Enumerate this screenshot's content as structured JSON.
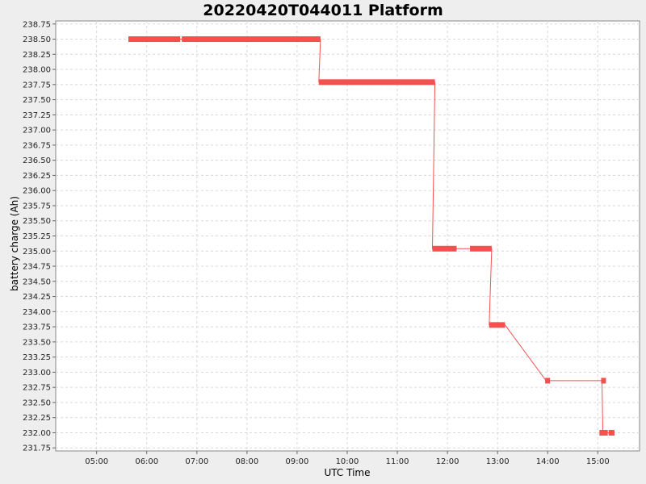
{
  "chart_data": {
    "type": "line",
    "title": "20220420T044011 Platform",
    "xlabel": "UTC Time",
    "ylabel": "battery charge (Ah)",
    "xlim": [
      "04:11",
      "15:50"
    ],
    "ylim": [
      231.7,
      238.8
    ],
    "x_ticks": [
      "05:00",
      "06:00",
      "07:00",
      "08:00",
      "09:00",
      "10:00",
      "11:00",
      "12:00",
      "13:00",
      "14:00",
      "15:00"
    ],
    "y_ticks": [
      "231.75",
      "232.00",
      "232.25",
      "232.50",
      "232.75",
      "233.00",
      "233.25",
      "233.50",
      "233.75",
      "234.00",
      "234.25",
      "234.50",
      "234.75",
      "235.00",
      "235.25",
      "235.50",
      "235.75",
      "236.00",
      "236.25",
      "236.50",
      "236.75",
      "237.00",
      "237.25",
      "237.50",
      "237.75",
      "238.00",
      "238.25",
      "238.50",
      "238.75"
    ],
    "grid": true,
    "line_color": "#f45050",
    "series": [
      {
        "points": [
          [
            "05:38",
            238.5
          ],
          [
            "06:40",
            238.5
          ],
          [
            "06:42",
            238.5
          ],
          [
            "09:28",
            238.5
          ],
          [
            "09:26",
            237.79
          ],
          [
            "11:45",
            237.79
          ],
          [
            "11:42",
            235.04
          ],
          [
            "12:11",
            235.04
          ],
          [
            "12:27",
            235.04
          ],
          [
            "12:53",
            235.04
          ],
          [
            "12:50",
            233.78
          ],
          [
            "13:09",
            233.78
          ],
          [
            "13:58",
            232.86
          ],
          [
            "15:05",
            232.86
          ],
          [
            "15:06",
            232.0
          ],
          [
            "15:12",
            232.0
          ],
          [
            "15:15",
            232.0
          ],
          [
            "15:20",
            232.0
          ]
        ],
        "segments": [
          [
            "05:38",
            "06:40",
            238.5
          ],
          [
            "06:42",
            "09:28",
            238.5
          ],
          [
            "09:26",
            "11:45",
            237.79
          ],
          [
            "11:42",
            "12:11",
            235.04
          ],
          [
            "12:27",
            "12:53",
            235.04
          ],
          [
            "12:50",
            "13:09",
            233.78
          ],
          [
            "13:57",
            "14:00",
            232.86
          ],
          [
            "15:04",
            "15:07",
            232.86
          ],
          [
            "15:02",
            "15:12",
            232.0
          ],
          [
            "15:13",
            "15:20",
            232.0
          ]
        ]
      }
    ]
  }
}
